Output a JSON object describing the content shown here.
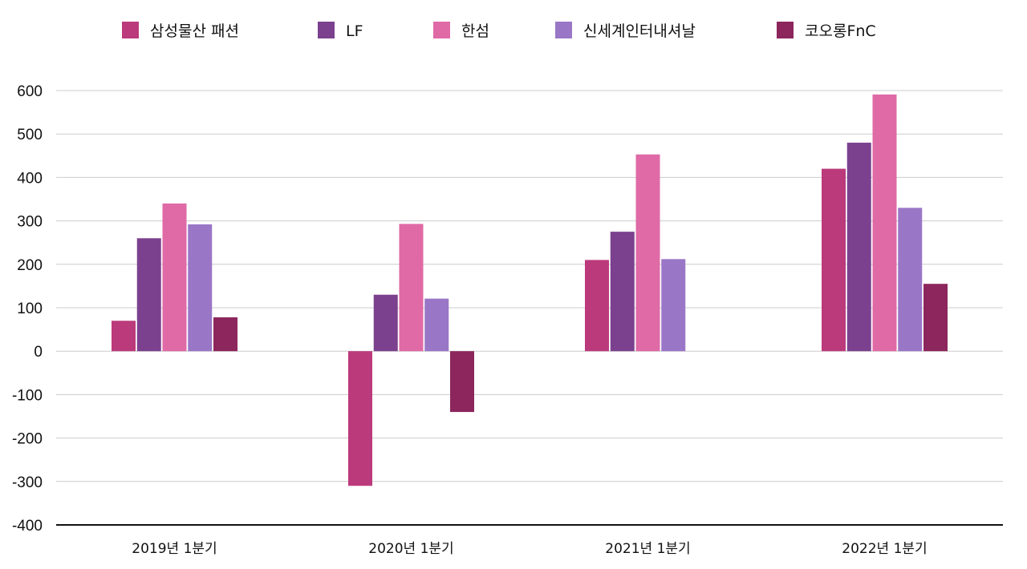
{
  "chart_data": {
    "type": "bar",
    "title": "",
    "xlabel": "",
    "ylabel": "",
    "categories": [
      "2019년 1분기",
      "2020년 1분기",
      "2021년 1분기",
      "2022년 1분기"
    ],
    "series": [
      {
        "name": "삼성물산 패션",
        "color": "#bb3a7b",
        "values": [
          70,
          -310,
          210,
          420
        ]
      },
      {
        "name": "LF",
        "color": "#7b418e",
        "values": [
          260,
          130,
          275,
          480
        ]
      },
      {
        "name": "한섬",
        "color": "#df6aa6",
        "values": [
          340,
          293,
          453,
          591
        ]
      },
      {
        "name": "신세계인터내셔날",
        "color": "#9a76c7",
        "values": [
          292,
          121,
          212,
          330
        ]
      },
      {
        "name": "코오롱FnC",
        "color": "#8c265c",
        "values": [
          78,
          -140,
          null,
          155
        ]
      }
    ],
    "ylim": [
      -400,
      600
    ],
    "yticks": [
      600,
      500,
      400,
      300,
      200,
      100,
      0,
      -100,
      -200,
      -300,
      -400
    ],
    "grid": true,
    "legend_position": "top"
  }
}
